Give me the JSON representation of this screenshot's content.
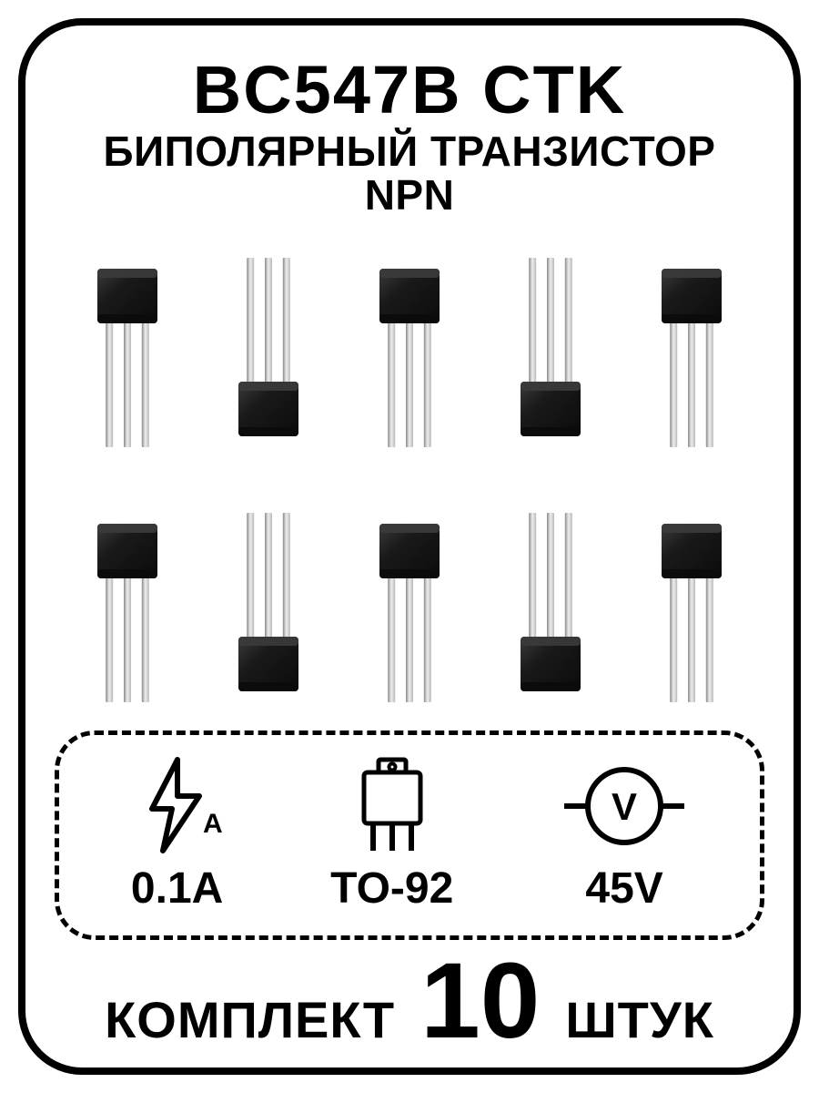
{
  "title_line1": "BC547B CTK",
  "title_line2": "БИПОЛЯРНЫЙ ТРАНЗИСТОР NPN",
  "transistor_count": 10,
  "transistor_rows": 2,
  "transistor_cols": 5,
  "colors": {
    "body_top": "#3b3b3b",
    "body_mid": "#1a1a1a",
    "body_dark": "#0b0b0b",
    "lead_light": "#e8e8e8",
    "lead_mid": "#b8b8b8",
    "lead_dark": "#888888",
    "border": "#000000",
    "background": "#ffffff"
  },
  "specs": {
    "current": {
      "label": "0.1A"
    },
    "package": {
      "label": "TO-92"
    },
    "voltage": {
      "label": "45V"
    }
  },
  "kit": {
    "word_left": "КОМПЛЕКТ",
    "number": "10",
    "word_right": "ШТУК"
  },
  "icon_sizes": {
    "spec_icon_w": 110,
    "spec_icon_h": 110
  }
}
